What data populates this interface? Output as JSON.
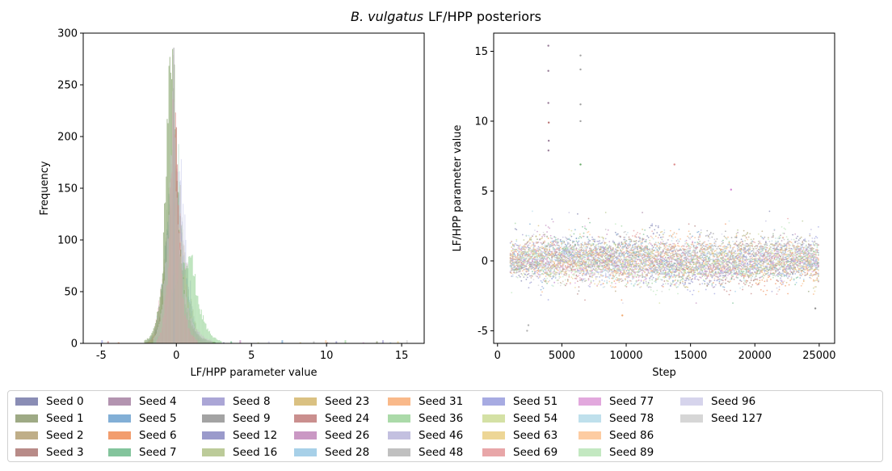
{
  "figure": {
    "title_italic": "B. vulgatus",
    "title_rest": "LF/HPP posteriors"
  },
  "chart_data": [
    {
      "type": "bar",
      "subtype": "histogram",
      "xlabel": "LF/HPP parameter value",
      "ylabel": "Frequency",
      "xlim": [
        -6.2,
        16.5
      ],
      "ylim": [
        0,
        300
      ],
      "xticks": [
        -5,
        0,
        5,
        10,
        15
      ],
      "yticks": [
        0,
        50,
        100,
        150,
        200,
        250,
        300
      ],
      "grid": false,
      "series_summary": {
        "peak_x": -0.2,
        "peak_frequency": 286,
        "notes": "overlapping per-seed histograms, peak near -0.2, long right tail to ~15.4"
      },
      "envelopes": [
        {
          "name": "Seed 1",
          "color": "#6b8f4a",
          "opacity": 0.55,
          "x": [
            -2.2,
            -1.8,
            -1.4,
            -1.0,
            -0.8,
            -0.6,
            -0.4,
            -0.2,
            0.0,
            0.2,
            0.4,
            0.6,
            0.8,
            1.2,
            1.6,
            2.0,
            2.6
          ],
          "y": [
            2,
            6,
            18,
            55,
            130,
            230,
            255,
            285,
            180,
            95,
            60,
            40,
            25,
            12,
            6,
            3,
            1
          ]
        },
        {
          "name": "Seed 36",
          "color": "#6fc46f",
          "opacity": 0.45,
          "x": [
            -1.6,
            -1.0,
            -0.6,
            -0.2,
            0.2,
            0.6,
            0.9,
            1.2,
            1.6,
            2.0,
            2.4,
            3.0
          ],
          "y": [
            2,
            10,
            30,
            60,
            75,
            80,
            90,
            60,
            30,
            15,
            6,
            2
          ]
        },
        {
          "name": "Seed 24",
          "color": "#d98080",
          "opacity": 0.6,
          "x": [
            -1.4,
            -1.0,
            -0.6,
            -0.4,
            -0.2,
            0.0,
            0.2,
            0.5,
            0.9,
            1.4
          ],
          "y": [
            2,
            12,
            60,
            150,
            240,
            190,
            90,
            30,
            10,
            2
          ]
        },
        {
          "name": "Seed 127",
          "color": "#c4c4c4",
          "opacity": 0.6,
          "x": [
            -1.6,
            -1.2,
            -0.8,
            -0.4,
            -0.2,
            0.0,
            0.4,
            0.8,
            1.2,
            1.8,
            2.4
          ],
          "y": [
            3,
            15,
            60,
            160,
            270,
            140,
            60,
            30,
            15,
            6,
            2
          ]
        }
      ]
    },
    {
      "type": "scatter",
      "subtype": "trace",
      "xlabel": "Step",
      "ylabel": "LF/HPP parameter value",
      "xlim": [
        -300,
        26200
      ],
      "ylim": [
        -5.9,
        16.3
      ],
      "xticks": [
        0,
        5000,
        10000,
        15000,
        20000,
        25000
      ],
      "yticks": [
        -5,
        0,
        5,
        10,
        15
      ],
      "grid": false,
      "x_range": [
        1000,
        25000
      ],
      "baseline": 0,
      "outliers": [
        {
          "x": 3950,
          "y": 15.4,
          "color": "#8c6d8c"
        },
        {
          "x": 3950,
          "y": 13.6,
          "color": "#8c6d8c"
        },
        {
          "x": 3950,
          "y": 11.3,
          "color": "#8c6d8c"
        },
        {
          "x": 3980,
          "y": 9.9,
          "color": "#b06060"
        },
        {
          "x": 3980,
          "y": 8.6,
          "color": "#8c6d8c"
        },
        {
          "x": 3960,
          "y": 7.9,
          "color": "#8c6d8c"
        },
        {
          "x": 6450,
          "y": 14.7,
          "color": "#999999"
        },
        {
          "x": 6450,
          "y": 13.7,
          "color": "#999999"
        },
        {
          "x": 6450,
          "y": 11.2,
          "color": "#999999"
        },
        {
          "x": 6450,
          "y": 10.0,
          "color": "#999999"
        },
        {
          "x": 6450,
          "y": 6.9,
          "color": "#5ba35b"
        },
        {
          "x": 13750,
          "y": 6.9,
          "color": "#d98080"
        },
        {
          "x": 18150,
          "y": 5.1,
          "color": "#cc77cc"
        },
        {
          "x": 2400,
          "y": -4.6,
          "color": "#aaaaaa"
        },
        {
          "x": 2300,
          "y": -5.0,
          "color": "#aaaaaa"
        },
        {
          "x": 9700,
          "y": -3.9,
          "color": "#f0a060"
        },
        {
          "x": 24700,
          "y": -3.4,
          "color": "#888888"
        }
      ]
    }
  ],
  "legend": {
    "items": [
      {
        "label": "Seed 0",
        "color": "#8a8db5"
      },
      {
        "label": "Seed 1",
        "color": "#9eaa85"
      },
      {
        "label": "Seed 2",
        "color": "#bfae88"
      },
      {
        "label": "Seed 3",
        "color": "#b88b88"
      },
      {
        "label": "Seed 4",
        "color": "#b394b0"
      },
      {
        "label": "Seed 5",
        "color": "#82afd6"
      },
      {
        "label": "Seed 6",
        "color": "#f29d6e"
      },
      {
        "label": "Seed 7",
        "color": "#83c49c"
      },
      {
        "label": "Seed 8",
        "color": "#aba6d6"
      },
      {
        "label": "Seed 9",
        "color": "#a3a3a3"
      },
      {
        "label": "Seed 12",
        "color": "#9a9acb"
      },
      {
        "label": "Seed 16",
        "color": "#bccb99"
      },
      {
        "label": "Seed 23",
        "color": "#dac182"
      },
      {
        "label": "Seed 24",
        "color": "#ca8f8e"
      },
      {
        "label": "Seed 26",
        "color": "#ca98c4"
      },
      {
        "label": "Seed 28",
        "color": "#a7d0e8"
      },
      {
        "label": "Seed 31",
        "color": "#f9b98a"
      },
      {
        "label": "Seed 36",
        "color": "#abdaa9"
      },
      {
        "label": "Seed 46",
        "color": "#c3c0e0"
      },
      {
        "label": "Seed 48",
        "color": "#c0c0c0"
      },
      {
        "label": "Seed 51",
        "color": "#a7abe2"
      },
      {
        "label": "Seed 54",
        "color": "#d4e1a5"
      },
      {
        "label": "Seed 63",
        "color": "#edd696"
      },
      {
        "label": "Seed 69",
        "color": "#e8a6a8"
      },
      {
        "label": "Seed 77",
        "color": "#e2a8dd"
      },
      {
        "label": "Seed 78",
        "color": "#bfe0ec"
      },
      {
        "label": "Seed 86",
        "color": "#fdcca2"
      },
      {
        "label": "Seed 89",
        "color": "#c3e8c1"
      },
      {
        "label": "Seed 96",
        "color": "#d6d4ec"
      },
      {
        "label": "Seed 127",
        "color": "#d6d6d6"
      }
    ]
  }
}
